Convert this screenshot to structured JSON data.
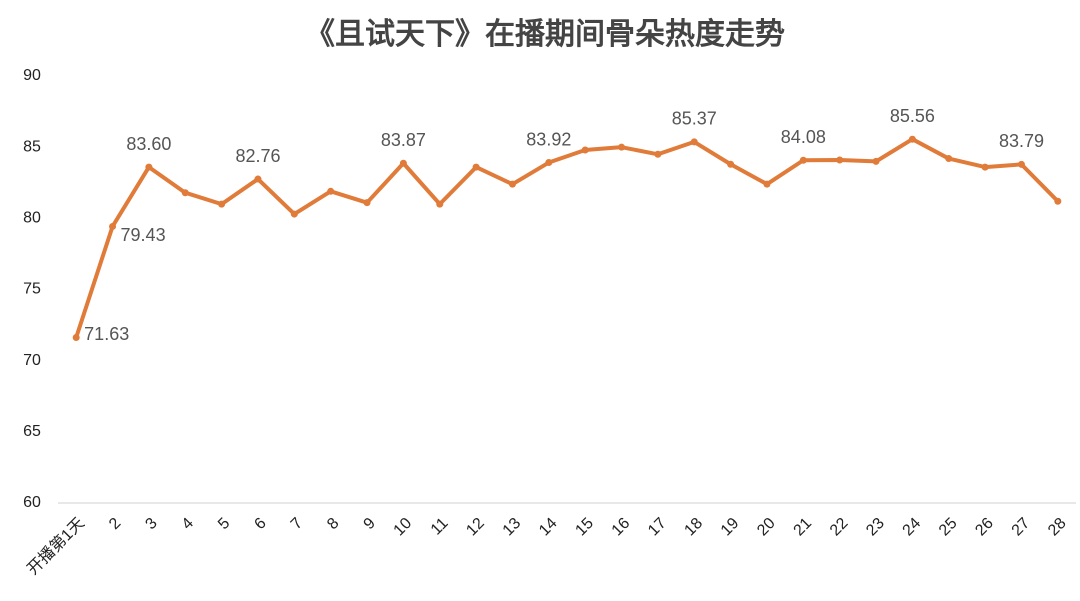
{
  "chart_data": {
    "type": "line",
    "title": "《且试天下》在播期间骨朵热度走势",
    "categories": [
      "开播第1天",
      "2",
      "3",
      "4",
      "5",
      "6",
      "7",
      "8",
      "9",
      "10",
      "11",
      "12",
      "13",
      "14",
      "15",
      "16",
      "17",
      "18",
      "19",
      "20",
      "21",
      "22",
      "23",
      "24",
      "25",
      "26",
      "27",
      "28"
    ],
    "values": [
      71.63,
      79.43,
      83.6,
      81.8,
      81.0,
      82.76,
      80.3,
      81.9,
      81.1,
      83.87,
      81.0,
      83.6,
      82.4,
      83.92,
      84.8,
      85.0,
      84.5,
      85.37,
      83.8,
      82.4,
      84.08,
      84.1,
      84.0,
      85.56,
      84.2,
      83.6,
      83.79,
      81.2
    ],
    "value_labels": [
      "71.63",
      "79.43",
      "83.60",
      null,
      null,
      "82.76",
      null,
      null,
      null,
      "83.87",
      null,
      null,
      null,
      "83.92",
      null,
      null,
      null,
      "85.37",
      null,
      null,
      "84.08",
      null,
      null,
      "85.56",
      null,
      null,
      "83.79",
      null
    ],
    "color": "#e07b39",
    "ylim": [
      60,
      90
    ],
    "yticks": [
      60,
      65,
      70,
      75,
      80,
      85,
      90
    ],
    "grid": false
  }
}
